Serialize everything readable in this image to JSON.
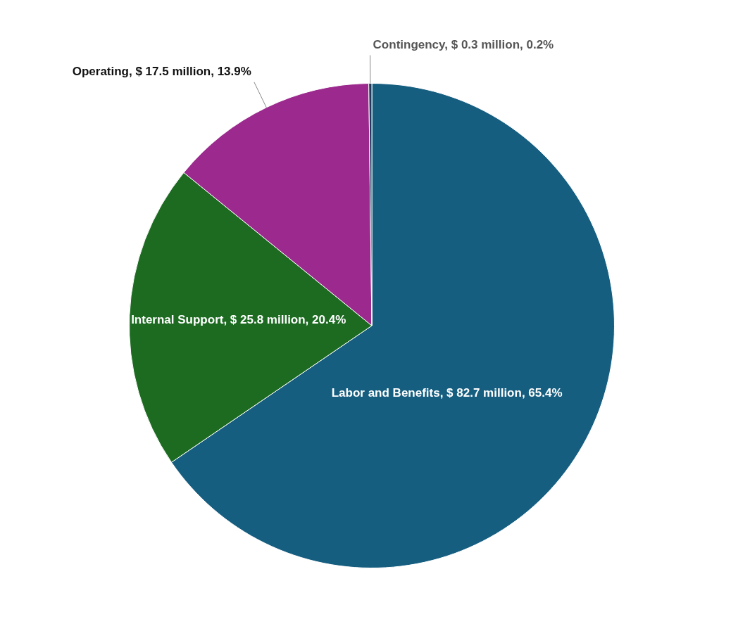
{
  "chart_data": {
    "type": "pie",
    "categories": [
      "Labor and Benefits",
      "Internal Support",
      "Operating",
      "Contingency"
    ],
    "values": [
      65.4,
      20.4,
      13.9,
      0.2
    ],
    "value_labels": [
      "$ 82.7 million, 65.4%",
      "$ 25.8 million, 20.4%",
      "$ 17.5 million, 13.9%",
      "$ 0.3 million, 0.2%"
    ],
    "colors": [
      "#165e80",
      "#1c6b21",
      "#9c2a8e",
      "#1f3b5a"
    ],
    "legend": false
  }
}
